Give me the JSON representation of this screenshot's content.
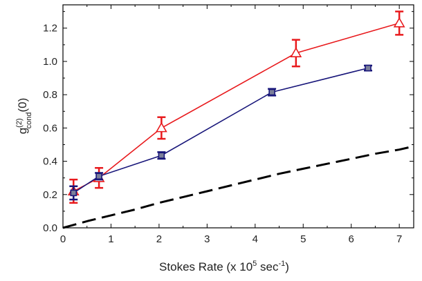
{
  "chart_data": {
    "type": "line",
    "xlabel": {
      "pre": "Stokes Rate (x 10",
      "sup": "5",
      "mid": " sec",
      "sup2": "-1",
      "post": ")"
    },
    "ylabel": {
      "pre": "g",
      "sup": "(2)",
      "sub": "cond",
      "post": "(0)"
    },
    "xlim": [
      0,
      7.3
    ],
    "ylim": [
      0,
      1.34
    ],
    "x_ticks": [
      "0",
      "1",
      "2",
      "3",
      "4",
      "5",
      "6",
      "7"
    ],
    "y_ticks": [
      "0.0",
      "0.2",
      "0.4",
      "0.6",
      "0.8",
      "1.0",
      "1.2"
    ],
    "grid": false,
    "series": [
      {
        "marker": "triangle-open",
        "color": "#e8191c",
        "x": [
          0.22,
          0.75,
          2.05,
          4.85,
          7.0
        ],
        "y": [
          0.22,
          0.3,
          0.6,
          1.05,
          1.23
        ],
        "err": [
          0.07,
          0.06,
          0.065,
          0.08,
          0.07
        ]
      },
      {
        "marker": "square-filled",
        "color": "#18167a",
        "x": [
          0.22,
          0.75,
          2.05,
          4.35,
          6.35
        ],
        "y": [
          0.21,
          0.31,
          0.435,
          0.815,
          0.96
        ],
        "err": [
          0.04,
          0.02,
          0.02,
          0.02,
          0.015
        ]
      },
      {
        "style": "dashed",
        "color": "#000000",
        "x": [
          0,
          0.5,
          1,
          1.5,
          2,
          2.5,
          3,
          3.5,
          4,
          4.5,
          5,
          5.5,
          6,
          6.5,
          7,
          7.3
        ],
        "y": [
          0.0,
          0.04,
          0.075,
          0.11,
          0.15,
          0.185,
          0.22,
          0.255,
          0.29,
          0.325,
          0.355,
          0.385,
          0.415,
          0.445,
          0.47,
          0.49
        ]
      }
    ]
  }
}
